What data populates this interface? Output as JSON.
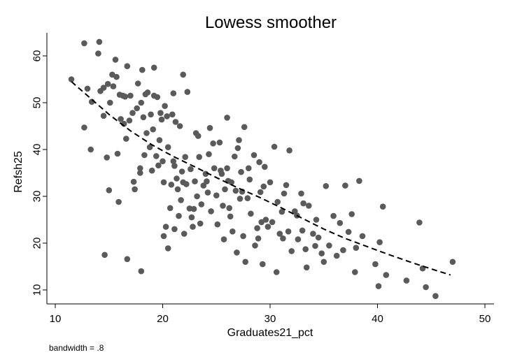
{
  "chart_data": {
    "type": "scatter",
    "title": "Lowess smoother",
    "xlabel": "Graduates21_pct",
    "ylabel": "Refsh25",
    "note": "bandwidth = .8",
    "xlim": [
      10,
      50
    ],
    "ylim": [
      8.5,
      65
    ],
    "x_ticks": [
      10,
      20,
      30,
      40,
      50
    ],
    "y_ticks": [
      10,
      20,
      30,
      40,
      50,
      60
    ],
    "grid": false,
    "colors": {
      "points": "#5a5a5a",
      "smoother": "#000000",
      "axis": "#000000",
      "background": "#ffffff"
    },
    "series": [
      {
        "kind": "points",
        "points": [
          [
            11.5,
            55
          ],
          [
            12.7,
            62.7
          ],
          [
            13.0,
            53
          ],
          [
            13.4,
            50.2
          ],
          [
            14.0,
            60.5
          ],
          [
            14.1,
            63
          ],
          [
            14.2,
            52.5
          ],
          [
            12.7,
            44.7
          ],
          [
            13.3,
            40
          ],
          [
            14.6,
            17.5
          ],
          [
            14.5,
            53.2
          ],
          [
            14.5,
            47.2
          ],
          [
            14.8,
            38.3
          ],
          [
            14.9,
            54
          ],
          [
            15.0,
            31.3
          ],
          [
            15.1,
            50
          ],
          [
            15.3,
            56
          ],
          [
            15.4,
            53.5
          ],
          [
            15.6,
            59.2
          ],
          [
            15.7,
            55.5
          ],
          [
            15.8,
            39.1
          ],
          [
            15.9,
            28.8
          ],
          [
            16.0,
            51.7
          ],
          [
            16.1,
            46.5
          ],
          [
            16.3,
            51.5
          ],
          [
            16.4,
            45.5
          ],
          [
            16.5,
            51.3
          ],
          [
            16.6,
            42.3
          ],
          [
            16.7,
            57.8
          ],
          [
            16.7,
            16.6
          ],
          [
            16.9,
            46.2
          ],
          [
            17.0,
            51.5
          ],
          [
            17.2,
            47.8
          ],
          [
            17.3,
            33.1
          ],
          [
            17.4,
            31.5
          ],
          [
            17.6,
            48.8
          ],
          [
            17.7,
            54.1
          ],
          [
            17.9,
            36
          ],
          [
            17.9,
            35
          ],
          [
            18.0,
            50
          ],
          [
            18.0,
            14
          ],
          [
            18.1,
            57
          ],
          [
            18.2,
            46.9
          ],
          [
            18.3,
            38.8
          ],
          [
            18.4,
            51.8
          ],
          [
            18.5,
            43.5
          ],
          [
            18.6,
            52.2
          ],
          [
            18.8,
            40.5
          ],
          [
            18.9,
            47.5
          ],
          [
            19.0,
            35.5
          ],
          [
            19.1,
            44.3
          ],
          [
            19.2,
            57.5
          ],
          [
            19.2,
            51.5
          ],
          [
            19.4,
            38.6
          ],
          [
            19.5,
            51.2
          ],
          [
            19.6,
            36.6
          ],
          [
            19.7,
            42
          ],
          [
            19.8,
            47.8
          ],
          [
            19.9,
            46.4
          ],
          [
            20.0,
            37.5
          ],
          [
            20.1,
            33
          ],
          [
            20.1,
            21.5
          ],
          [
            20.2,
            49.3
          ],
          [
            20.3,
            23.5
          ],
          [
            20.4,
            47.1
          ],
          [
            20.5,
            40.5
          ],
          [
            20.5,
            18.9
          ],
          [
            20.7,
            27.5
          ],
          [
            20.8,
            32.5
          ],
          [
            20.9,
            47.5
          ],
          [
            21.0,
            52
          ],
          [
            21.0,
            37.5
          ],
          [
            21.1,
            36.5
          ],
          [
            21.1,
            23
          ],
          [
            21.2,
            45.9
          ],
          [
            21.3,
            33.8
          ],
          [
            21.4,
            31.5
          ],
          [
            21.5,
            25.8
          ],
          [
            21.6,
            45
          ],
          [
            21.7,
            29.2
          ],
          [
            21.8,
            35.3
          ],
          [
            21.9,
            56
          ],
          [
            21.9,
            33
          ],
          [
            22.0,
            22
          ],
          [
            22.1,
            38.4
          ],
          [
            22.2,
            32.6
          ],
          [
            22.3,
            52.3
          ],
          [
            22.5,
            27.4
          ],
          [
            22.6,
            35.8
          ],
          [
            22.7,
            25.5
          ],
          [
            22.8,
            23.5
          ],
          [
            22.9,
            27.3
          ],
          [
            23.0,
            33.2
          ],
          [
            23.1,
            43.5
          ],
          [
            23.2,
            30
          ],
          [
            23.3,
            42.9
          ],
          [
            23.4,
            38.4
          ],
          [
            23.5,
            24.2
          ],
          [
            23.6,
            28.3
          ],
          [
            23.8,
            32.3
          ],
          [
            24.0,
            34.8
          ],
          [
            24.1,
            33.2
          ],
          [
            24.2,
            30.8
          ],
          [
            24.3,
            39
          ],
          [
            24.4,
            44.6
          ],
          [
            24.5,
            26.8
          ],
          [
            24.7,
            41.3
          ],
          [
            24.8,
            36
          ],
          [
            25.0,
            30.2
          ],
          [
            25.1,
            24
          ],
          [
            25.3,
            41.5
          ],
          [
            25.4,
            35.5
          ],
          [
            25.5,
            34.8
          ],
          [
            25.6,
            28
          ],
          [
            25.7,
            20.8
          ],
          [
            25.8,
            31.5
          ],
          [
            26.0,
            46.8
          ],
          [
            26.0,
            36
          ],
          [
            26.1,
            33.3
          ],
          [
            26.2,
            27.5
          ],
          [
            26.3,
            25.7
          ],
          [
            26.4,
            33
          ],
          [
            26.5,
            22.5
          ],
          [
            26.7,
            38.5
          ],
          [
            26.8,
            31.2
          ],
          [
            26.9,
            18
          ],
          [
            27.0,
            40.3
          ],
          [
            27.1,
            42
          ],
          [
            27.2,
            29.5
          ],
          [
            27.3,
            35.2
          ],
          [
            27.4,
            31
          ],
          [
            27.5,
            21.5
          ],
          [
            27.6,
            44.8
          ],
          [
            27.7,
            16
          ],
          [
            27.9,
            29.6
          ],
          [
            28.0,
            36
          ],
          [
            28.1,
            33.6
          ],
          [
            28.2,
            26.3
          ],
          [
            28.5,
            38.8
          ],
          [
            28.6,
            19.5
          ],
          [
            28.8,
            23.2
          ],
          [
            28.9,
            21
          ],
          [
            29.0,
            37.3
          ],
          [
            29.1,
            30.9
          ],
          [
            29.2,
            24.5
          ],
          [
            29.3,
            15.5
          ],
          [
            29.4,
            32.1
          ],
          [
            29.5,
            36.3
          ],
          [
            29.6,
            25
          ],
          [
            29.8,
            23.5
          ],
          [
            30.0,
            33
          ],
          [
            30.2,
            24.5
          ],
          [
            30.4,
            40.6
          ],
          [
            30.6,
            13.8
          ],
          [
            30.7,
            28.8
          ],
          [
            30.9,
            22
          ],
          [
            31.1,
            26.7
          ],
          [
            31.2,
            21
          ],
          [
            31.3,
            30.6
          ],
          [
            31.5,
            32.4
          ],
          [
            31.7,
            22.5
          ],
          [
            31.8,
            39.8
          ],
          [
            32.0,
            18.3
          ],
          [
            32.3,
            26.8
          ],
          [
            32.5,
            25.9
          ],
          [
            32.6,
            20.8
          ],
          [
            32.9,
            30.6
          ],
          [
            33.0,
            22.7
          ],
          [
            33.1,
            28.5
          ],
          [
            33.3,
            18.7
          ],
          [
            33.4,
            14.8
          ],
          [
            33.6,
            28
          ],
          [
            34.0,
            22
          ],
          [
            34.2,
            19.4
          ],
          [
            34.3,
            25
          ],
          [
            34.5,
            21.2
          ],
          [
            34.8,
            17.8
          ],
          [
            35.0,
            16
          ],
          [
            35.2,
            32.2
          ],
          [
            35.5,
            19.5
          ],
          [
            35.9,
            25.8
          ],
          [
            36.2,
            17.3
          ],
          [
            36.5,
            24.3
          ],
          [
            36.8,
            18.5
          ],
          [
            37.0,
            32.3
          ],
          [
            37.3,
            22.4
          ],
          [
            37.6,
            26.2
          ],
          [
            37.9,
            13.8
          ],
          [
            38.0,
            19
          ],
          [
            38.3,
            33.3
          ],
          [
            38.6,
            21.5
          ],
          [
            39.8,
            15.5
          ],
          [
            40.1,
            10.8
          ],
          [
            40.2,
            20.2
          ],
          [
            40.5,
            27.8
          ],
          [
            40.8,
            13.2
          ],
          [
            42.7,
            12
          ],
          [
            43.9,
            24.4
          ],
          [
            44.2,
            14.6
          ],
          [
            44.5,
            10.6
          ],
          [
            45.4,
            8.7
          ],
          [
            47.0,
            16
          ]
        ]
      },
      {
        "kind": "lowess-line",
        "points": [
          [
            11.5,
            54.5
          ],
          [
            13,
            51.5
          ],
          [
            15,
            47.5
          ],
          [
            17,
            44
          ],
          [
            19,
            41
          ],
          [
            21,
            38.5
          ],
          [
            23,
            36.3
          ],
          [
            25,
            34
          ],
          [
            27,
            31.8
          ],
          [
            29,
            29.8
          ],
          [
            31,
            27.6
          ],
          [
            33,
            25.3
          ],
          [
            35,
            23
          ],
          [
            37,
            21
          ],
          [
            39,
            19.3
          ],
          [
            41,
            17.6
          ],
          [
            43,
            16
          ],
          [
            45,
            14.5
          ],
          [
            46.8,
            13.2
          ]
        ]
      }
    ]
  }
}
